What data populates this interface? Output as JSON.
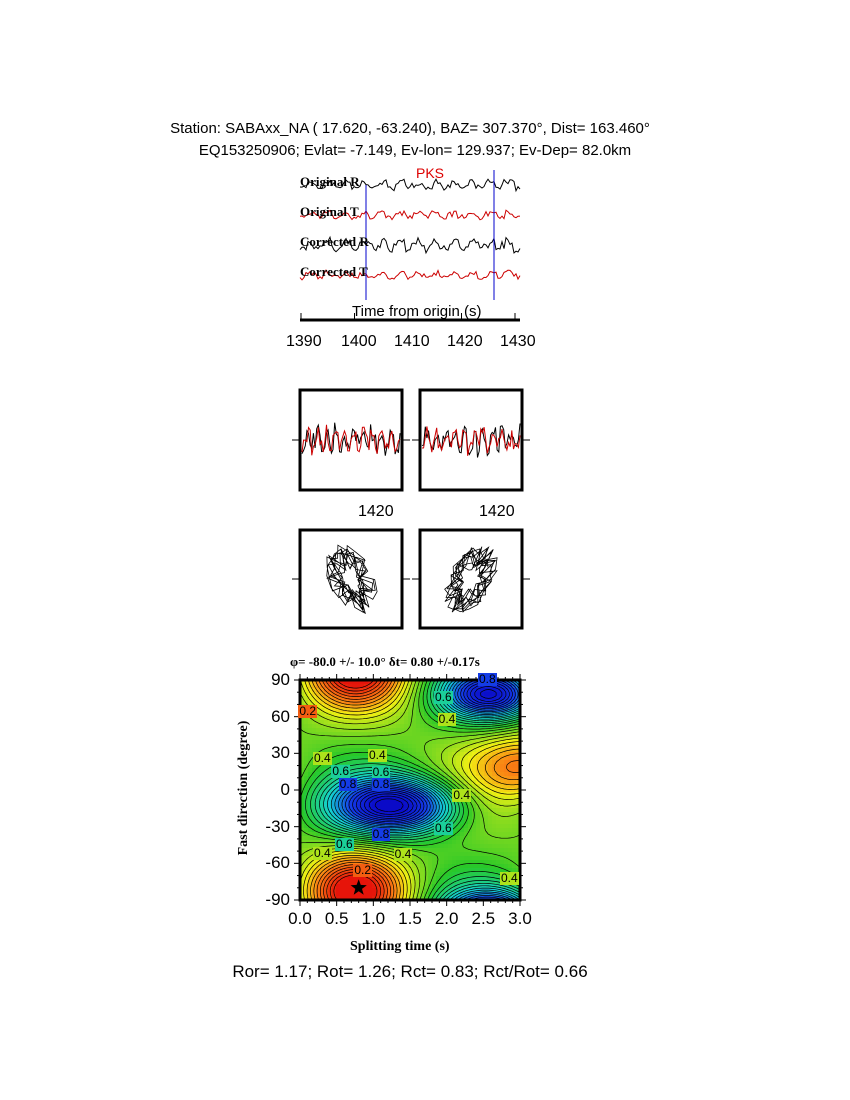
{
  "header": {
    "line1": "Station: SABAxx_NA (  17.620,  -63.240), BAZ=  307.370°, Dist=  163.460°",
    "line2": "EQ153250906; Evlat=  -7.149, Ev-lon= 129.937; Ev-Dep= 82.0km"
  },
  "traces": {
    "phase": "PKS",
    "labels": [
      "Original R",
      "Original T",
      "Corrected R",
      "Corrected T"
    ],
    "xlabel": "Time from origin (s)",
    "xticks": [
      "1390",
      "1400",
      "1410",
      "1420",
      "1430"
    ],
    "colors": {
      "radial": "#000000",
      "transverse": "#cc0000",
      "window": "#0000cc",
      "phase": "#dd0000"
    }
  },
  "waveform_panels": {
    "xtick_left": "1420",
    "xtick_right": "1420"
  },
  "footer": "Ror= 1.17; Rot= 1.26; Rct= 0.83; Rct/Rot= 0.66",
  "chart_data": {
    "type": "heatmap",
    "title": "φ= -80.0 +/- 10.0° δt= 0.80 +/-0.17s",
    "xlabel": "Splitting time (s)",
    "ylabel": "Fast direction (degree)",
    "xlim": [
      0,
      3
    ],
    "ylim": [
      -90,
      90
    ],
    "xticks": [
      "0.0",
      "0.5",
      "1.0",
      "1.5",
      "2.0",
      "2.5",
      "3.0"
    ],
    "yticks": [
      "90",
      "60",
      "30",
      "0",
      "-30",
      "-60",
      "-90"
    ],
    "best_fit": {
      "dt": 0.8,
      "phi": -80
    },
    "contour_labels": [
      {
        "text": "0.2",
        "x": 0.1,
        "y": 64
      },
      {
        "text": "0.6",
        "x": 1.95,
        "y": 75
      },
      {
        "text": "0.4",
        "x": 2.0,
        "y": 57
      },
      {
        "text": "0.8",
        "x": 2.55,
        "y": 90
      },
      {
        "text": "0.4",
        "x": 0.3,
        "y": 25
      },
      {
        "text": "0.4",
        "x": 1.05,
        "y": 28
      },
      {
        "text": "0.6",
        "x": 0.55,
        "y": 15
      },
      {
        "text": "0.6",
        "x": 1.1,
        "y": 14
      },
      {
        "text": "0.8",
        "x": 0.65,
        "y": 4
      },
      {
        "text": "0.8",
        "x": 1.1,
        "y": 4
      },
      {
        "text": "0.4",
        "x": 2.2,
        "y": -5
      },
      {
        "text": "0.6",
        "x": 1.95,
        "y": -32
      },
      {
        "text": "0.8",
        "x": 1.1,
        "y": -37
      },
      {
        "text": "0.6",
        "x": 0.6,
        "y": -45
      },
      {
        "text": "0.4",
        "x": 0.3,
        "y": -52
      },
      {
        "text": "0.4",
        "x": 1.4,
        "y": -53
      },
      {
        "text": "0.2",
        "x": 0.85,
        "y": -66
      },
      {
        "text": "0.4",
        "x": 2.85,
        "y": -73
      }
    ]
  }
}
